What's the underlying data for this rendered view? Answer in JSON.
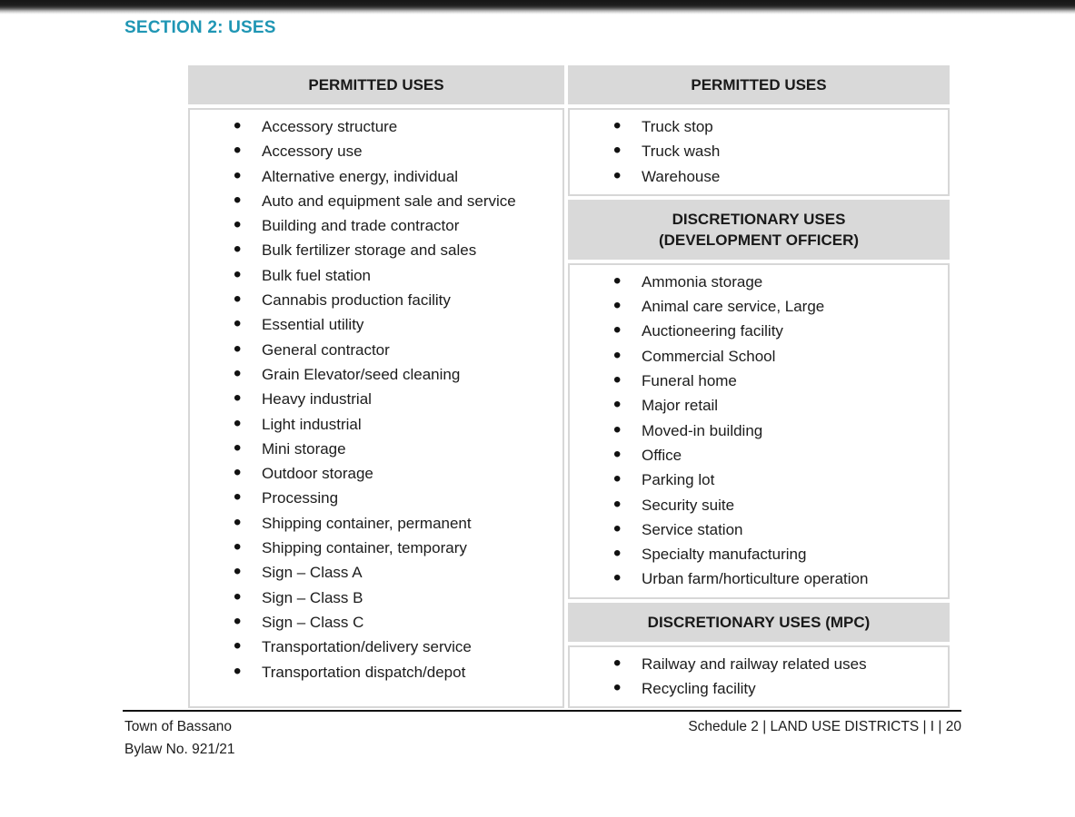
{
  "page": {
    "section_title": "SECTION 2: USES"
  },
  "colors": {
    "accent_teal": "#1f96b4",
    "table_header_gray": "#d9d9d9",
    "top_bar_dark": "#161616"
  },
  "table": {
    "left_column": {
      "header": "PERMITTED USES",
      "items": [
        "Accessory structure",
        "Accessory use",
        "Alternative energy, individual",
        "Auto and equipment sale and service",
        "Building and trade contractor",
        "Bulk fertilizer storage and sales",
        "Bulk fuel station",
        "Cannabis production facility",
        "Essential utility",
        "General contractor",
        "Grain Elevator/seed cleaning",
        "Heavy industrial",
        "Light industrial",
        "Mini storage",
        "Outdoor storage",
        "Processing",
        "Shipping container, permanent",
        "Shipping container, temporary",
        "Sign – Class A",
        "Sign – Class B",
        "Sign – Class C",
        "Transportation/delivery service",
        "Transportation dispatch/depot"
      ]
    },
    "right_column": {
      "permitted": {
        "header": "PERMITTED USES",
        "items": [
          "Truck stop",
          "Truck wash",
          "Warehouse"
        ]
      },
      "discretionary_development_officer": {
        "header": "DISCRETIONARY USES\n(DEVELOPMENT OFFICER)",
        "items": [
          "Ammonia storage",
          "Animal care service, Large",
          "Auctioneering facility",
          "Commercial School",
          "Funeral home",
          "Major retail",
          "Moved-in building",
          "Office",
          "Parking lot",
          "Security suite",
          "Service station",
          "Specialty manufacturing",
          "Urban farm/horticulture operation"
        ]
      },
      "discretionary_mpc": {
        "header": "DISCRETIONARY USES (MPC)",
        "items": [
          "Railway and railway related uses",
          "Recycling facility"
        ]
      }
    }
  },
  "footer": {
    "left_line1": "Town of Bassano",
    "left_line2": "Bylaw No. 921/21",
    "right": "Schedule 2 | LAND USE DISTRICTS | I | 20"
  }
}
